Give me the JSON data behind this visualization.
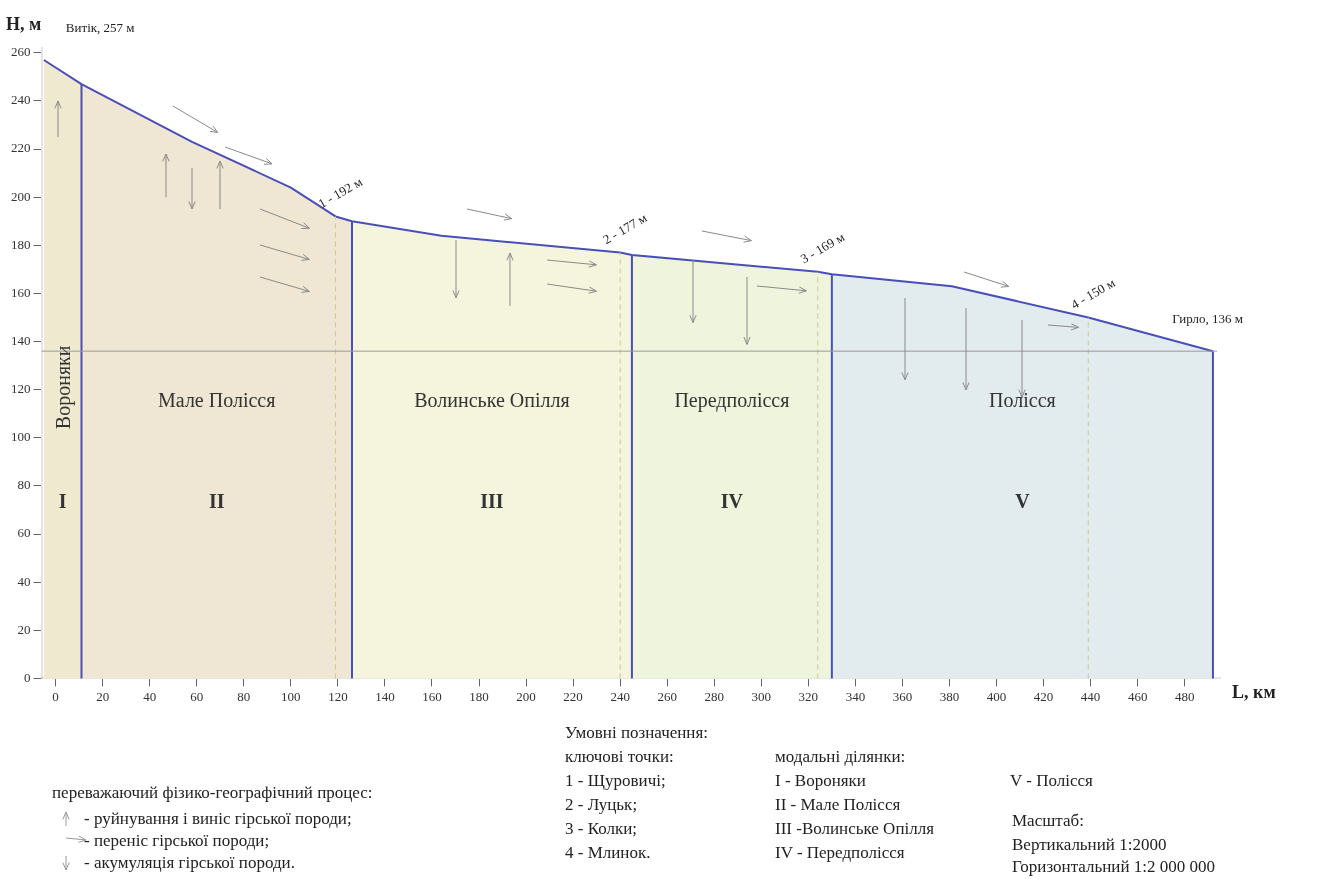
{
  "chart_data": {
    "type": "area",
    "xlabel": "L, км",
    "ylabel": "H, м",
    "xlim": [
      -6,
      495
    ],
    "ylim": [
      0,
      262
    ],
    "xticks": [
      0,
      20,
      40,
      60,
      80,
      100,
      120,
      140,
      160,
      180,
      200,
      220,
      240,
      260,
      280,
      300,
      320,
      340,
      360,
      380,
      400,
      420,
      440,
      460,
      480
    ],
    "yticks": [
      0,
      20,
      40,
      60,
      80,
      100,
      120,
      140,
      160,
      180,
      200,
      220,
      240,
      260
    ],
    "grid": false,
    "legend": false,
    "series": [
      {
        "type": "line",
        "color": "#4a4fb8",
        "x": [
          -5,
          11,
          58,
          100,
          119,
          126,
          164,
          240,
          245,
          324,
          330,
          381,
          439,
          492
        ],
        "values": [
          257,
          247,
          223,
          204,
          192,
          190,
          184,
          177,
          176,
          169,
          168,
          163,
          150,
          136
        ]
      },
      {
        "name": "Вороняки",
        "color": "#efe9cf",
        "x": [
          -5,
          11
        ],
        "values": [
          257,
          247
        ]
      },
      {
        "name": "Мале Полісся",
        "color": "#efe6d3",
        "x": [
          11,
          58,
          100,
          119,
          126
        ],
        "values": [
          247,
          223,
          204,
          192,
          190
        ]
      },
      {
        "name": "Волинське Опілля",
        "color": "#f4f5dc",
        "x": [
          126,
          164,
          240,
          245
        ],
        "values": [
          190,
          184,
          177,
          176
        ]
      },
      {
        "name": "Передполісся",
        "color": "#eff4dc",
        "x": [
          245,
          324,
          330
        ],
        "values": [
          176,
          169,
          168
        ]
      },
      {
        "name": "Полісся",
        "color": "#e2ebee",
        "x": [
          330,
          381,
          439,
          492
        ],
        "values": [
          168,
          163,
          150,
          136
        ]
      }
    ],
    "ref_lines": [
      {
        "axis": "x",
        "value": 11,
        "color": "#4a4fb8",
        "line_style": "solid"
      },
      {
        "axis": "x",
        "value": 126,
        "color": "#4a4fb8",
        "line_style": "solid"
      },
      {
        "axis": "x",
        "value": 245,
        "color": "#4a4fb8",
        "line_style": "solid"
      },
      {
        "axis": "x",
        "value": 330,
        "color": "#4a4fb8",
        "line_style": "solid"
      },
      {
        "axis": "x",
        "value": 492,
        "color": "#4a4fb8",
        "line_style": "solid"
      },
      {
        "axis": "x",
        "value": 119,
        "color": "#c9c98f",
        "line_style": "dashed"
      },
      {
        "axis": "x",
        "value": 240,
        "color": "#c9c98f",
        "line_style": "dashed"
      },
      {
        "axis": "x",
        "value": 324,
        "color": "#c9c98f",
        "line_style": "dashed"
      },
      {
        "axis": "x",
        "value": 439,
        "color": "#c9c98f",
        "line_style": "dashed"
      },
      {
        "axis": "y",
        "value": 136,
        "color": "#9a9a9a",
        "line_style": "solid"
      }
    ],
    "annotations": [
      {
        "text": "Витік, 257 м",
        "x": -5,
        "y": 257
      },
      {
        "text": "1 - 192 м",
        "x": 119,
        "y": 192
      },
      {
        "text": "2 - 177 м",
        "x": 240,
        "y": 177
      },
      {
        "text": "3 - 169 м",
        "x": 324,
        "y": 169
      },
      {
        "text": "4 - 150 м",
        "x": 439,
        "y": 150
      },
      {
        "text": "Гирло, 136 м",
        "x": 492,
        "y": 136
      },
      "I",
      "II",
      "III",
      "IV",
      "V",
      "переважаючий фізико-географічний процес:",
      "- руйнування і виніс гірської породи;",
      "- переніс гірської породи;",
      "- акумуляція гірської породи.",
      "Умовні позначення:",
      "ключові точки:",
      "1 - Щуровичі;",
      "2 - Луцьк;",
      "3 - Колки;",
      "4 - Млинок.",
      "модальні ділянки:",
      "I - Вороняки",
      "II - Мале Полісся",
      "III -Волинське Опілля",
      "IV - Передполісся",
      "V - Полісся",
      "Масштаб:",
      "Вертикальний 1:2000",
      "Горизонтальний 1:2 000 000"
    ]
  }
}
